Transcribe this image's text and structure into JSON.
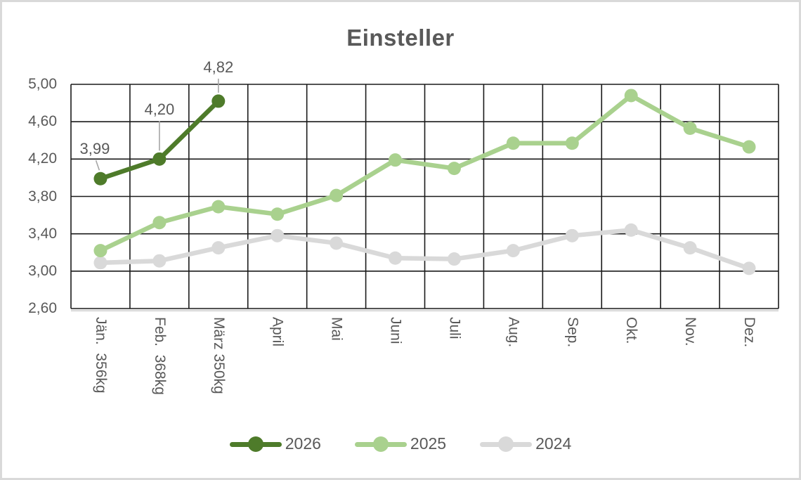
{
  "title": "Einsteller",
  "colors": {
    "series_2026": "#4e7b2a",
    "series_2025": "#a9d18e",
    "series_2024": "#d9d9d9",
    "text": "#595959",
    "gridline": "#1a1a1a",
    "leader_line": "#a6a6a6",
    "figure_border": "#d9d9d9",
    "axis_line": "#d9d9d9"
  },
  "chart_data": {
    "type": "line",
    "title": "Einsteller",
    "categories": [
      "Jän.  356kg",
      "Feb.  368kg",
      "März 350kg",
      "April",
      "Mai",
      "Juni",
      "Juli",
      "Aug.",
      "Sep.",
      "Okt.",
      "Nov.",
      "Dez."
    ],
    "series": [
      {
        "name": "2026",
        "color": "#4e7b2a",
        "values": [
          3.99,
          4.2,
          4.82,
          null,
          null,
          null,
          null,
          null,
          null,
          null,
          null,
          null
        ],
        "point_labels": [
          "3,99",
          "4,20",
          "4,82"
        ]
      },
      {
        "name": "2025",
        "color": "#a9d18e",
        "values": [
          3.22,
          3.52,
          3.69,
          3.61,
          3.81,
          4.19,
          4.1,
          4.37,
          4.37,
          4.88,
          4.53,
          4.33
        ],
        "point_labels": []
      },
      {
        "name": "2024",
        "color": "#d9d9d9",
        "values": [
          3.09,
          3.11,
          3.25,
          3.38,
          3.3,
          3.14,
          3.13,
          3.22,
          3.38,
          3.44,
          3.25,
          3.03
        ],
        "point_labels": []
      }
    ],
    "ylim": [
      2.6,
      5.0
    ],
    "ytick_step": 0.4,
    "ytick_labels": [
      "5,00",
      "4,60",
      "4,20",
      "3,80",
      "3,40",
      "3,00",
      "2,60"
    ],
    "grid": true,
    "legend_position": "bottom",
    "legend": [
      "2026",
      "2025",
      "2024"
    ]
  }
}
